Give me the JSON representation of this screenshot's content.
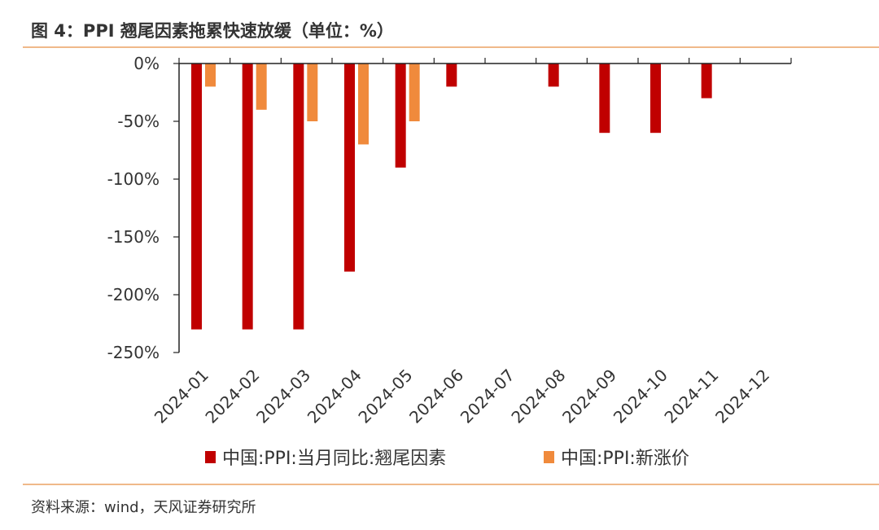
{
  "header": {
    "title": "图 4：PPI 翘尾因素拖累快速放缓（单位：%）"
  },
  "footer": {
    "source": "资料来源：wind，天风证券研究所"
  },
  "chart_data": {
    "type": "bar",
    "categories": [
      "2024-01",
      "2024-02",
      "2024-03",
      "2024-04",
      "2024-05",
      "2024-06",
      "2024-07",
      "2024-08",
      "2024-09",
      "2024-10",
      "2024-11",
      "2024-12"
    ],
    "series": [
      {
        "name": "中国:PPI:当月同比:翘尾因素",
        "color": "#c00000",
        "values": [
          -230,
          -230,
          -230,
          -180,
          -90,
          -20,
          0,
          -20,
          -60,
          -60,
          -30,
          0
        ]
      },
      {
        "name": "中国:PPI:新涨价",
        "color": "#f08a3c",
        "values": [
          -20,
          -40,
          -50,
          -70,
          -50,
          0,
          0,
          0,
          0,
          0,
          0,
          0
        ]
      }
    ],
    "ylim": [
      -250,
      0
    ],
    "yticks": [
      0,
      -50,
      -100,
      -150,
      -200,
      -250
    ],
    "yticklabels": [
      "0%",
      "-50%",
      "-100%",
      "-150%",
      "-200%",
      "-250%"
    ],
    "grid": false,
    "legend_position": "bottom"
  }
}
